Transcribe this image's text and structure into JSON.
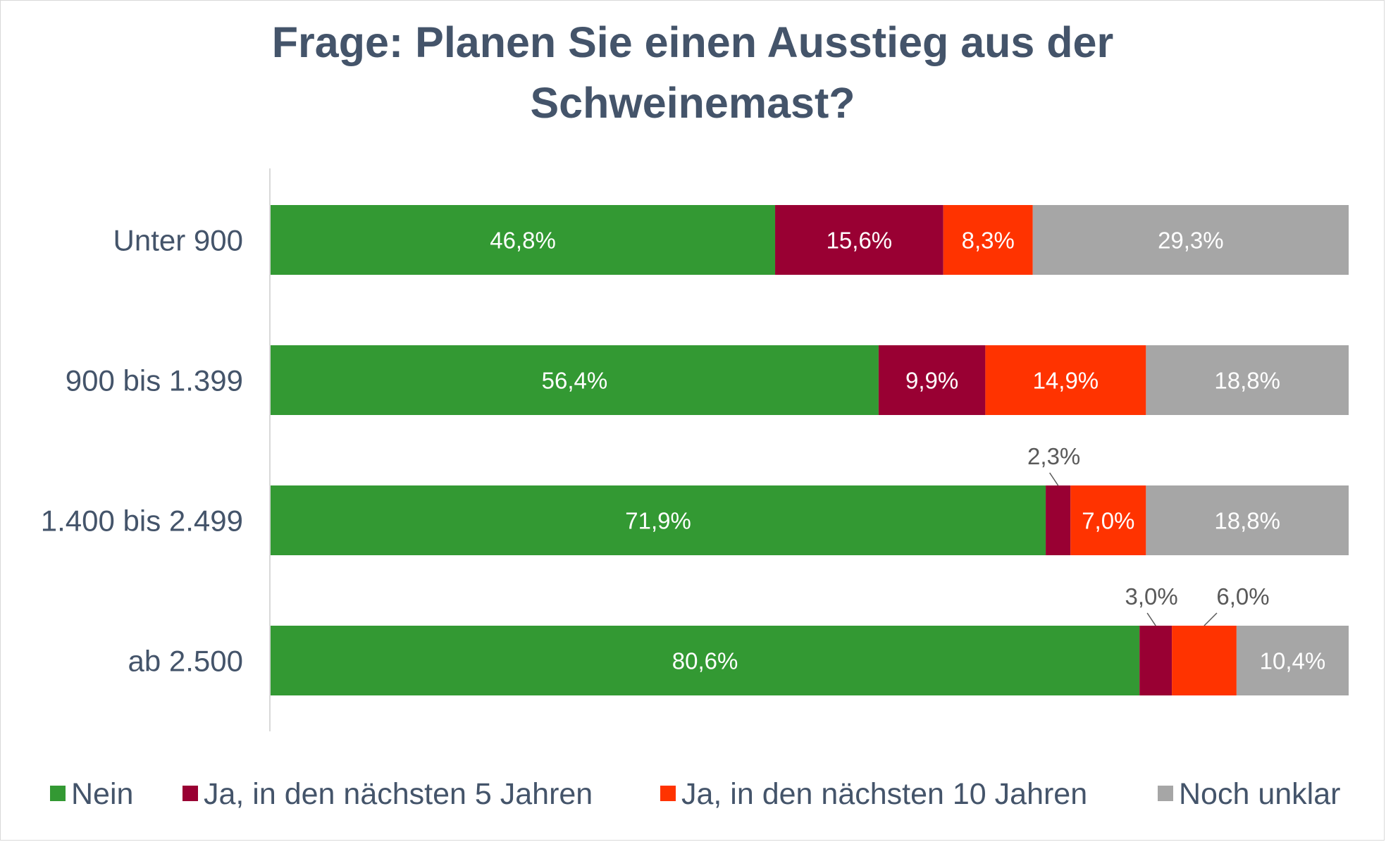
{
  "chart_data": {
    "type": "bar",
    "orientation": "horizontal",
    "stacked": true,
    "title_lines": [
      "Frage: Planen Sie einen Ausstieg aus der",
      "Schweinemast?"
    ],
    "categories": [
      "Unter 900",
      "900 bis 1.399",
      "1.400 bis 2.499",
      "ab 2.500"
    ],
    "series": [
      {
        "name": "Nein",
        "color": "#339933",
        "values": [
          46.8,
          56.4,
          71.9,
          80.6
        ],
        "labels": [
          "46,8%",
          "56,4%",
          "71,9%",
          "80,6%"
        ]
      },
      {
        "name": "Ja, in den nächsten 5 Jahren",
        "color": "#990033",
        "values": [
          15.6,
          9.9,
          2.3,
          3.0
        ],
        "labels": [
          "15,6%",
          "9,9%",
          "2,3%",
          "3,0%"
        ]
      },
      {
        "name": "Ja, in den nächsten 10 Jahren",
        "color": "#ff3300",
        "values": [
          8.3,
          14.9,
          7.0,
          6.0
        ],
        "labels": [
          "8,3%",
          "14,9%",
          "7,0%",
          "6,0%"
        ]
      },
      {
        "name": "Noch unklar",
        "color": "#a6a6a6",
        "values": [
          29.3,
          18.8,
          18.8,
          10.4
        ],
        "labels": [
          "29,3%",
          "18,8%",
          "18,8%",
          "10,4%"
        ]
      }
    ],
    "xlim": [
      0,
      100
    ],
    "grid": false,
    "legend_position": "bottom"
  }
}
